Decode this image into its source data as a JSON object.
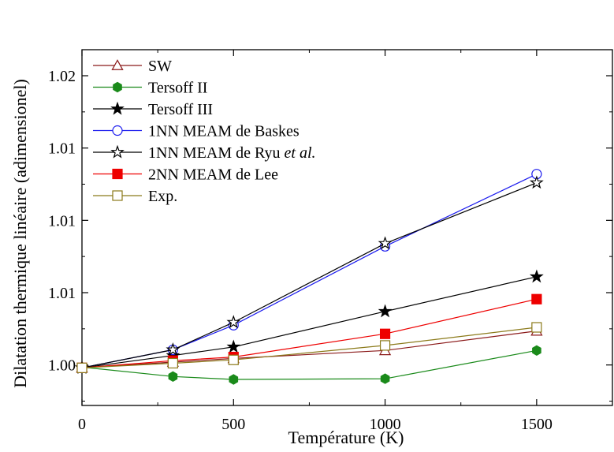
{
  "chart_data": {
    "type": "line",
    "xlabel": "Température (K)",
    "ylabel": "Dilatation thermique linéaire (adimensionel)",
    "xlim": [
      0,
      1750
    ],
    "ylim": [
      0.9972,
      1.0218
    ],
    "x_ticks": [
      0,
      500,
      1000,
      1500
    ],
    "x_tick_labels": [
      "0",
      "500",
      "1000",
      "1500"
    ],
    "y_ticks": [
      1.0,
      1.005,
      1.01,
      1.015,
      1.02
    ],
    "y_tick_labels": [
      "1.00",
      "1.01",
      "1.01",
      "1.01",
      "1.02"
    ],
    "x": [
      0,
      300,
      500,
      1000,
      1500
    ],
    "legend_position": "top-left",
    "series": [
      {
        "name": "SW",
        "color": "#8b1a1a",
        "marker": "triangle-open",
        "values": [
          0.9998,
          1.0002,
          1.00045,
          1.001,
          1.00235
        ]
      },
      {
        "name": "Tersoff II",
        "color": "#1a8a1a",
        "marker": "hexagon-filled",
        "values": [
          0.99985,
          0.9992,
          0.999,
          0.99905,
          1.001
        ]
      },
      {
        "name": "Tersoff III",
        "color": "#000000",
        "marker": "star-filled",
        "values": [
          0.9998,
          1.00065,
          1.00125,
          1.0037,
          1.0061
        ]
      },
      {
        "name": "1NN MEAM de Baskes",
        "color": "#1a1aee",
        "marker": "circle-open",
        "values": [
          0.9998,
          1.00105,
          1.00275,
          1.0082,
          1.0132
        ]
      },
      {
        "name": "1NN MEAM de Ryu et al.",
        "color": "#000000",
        "marker": "star-open",
        "values": [
          0.9998,
          1.00105,
          1.00295,
          1.0084,
          1.0126
        ]
      },
      {
        "name": "2NN MEAM de Lee",
        "color": "#ee0000",
        "marker": "square-filled",
        "values": [
          0.9998,
          1.0003,
          1.00055,
          1.00215,
          1.00455
        ]
      },
      {
        "name": "Exp.",
        "color": "#8b7a1a",
        "marker": "square-open",
        "values": [
          0.9998,
          1.00012,
          1.00035,
          1.00135,
          1.0026
        ]
      }
    ]
  }
}
